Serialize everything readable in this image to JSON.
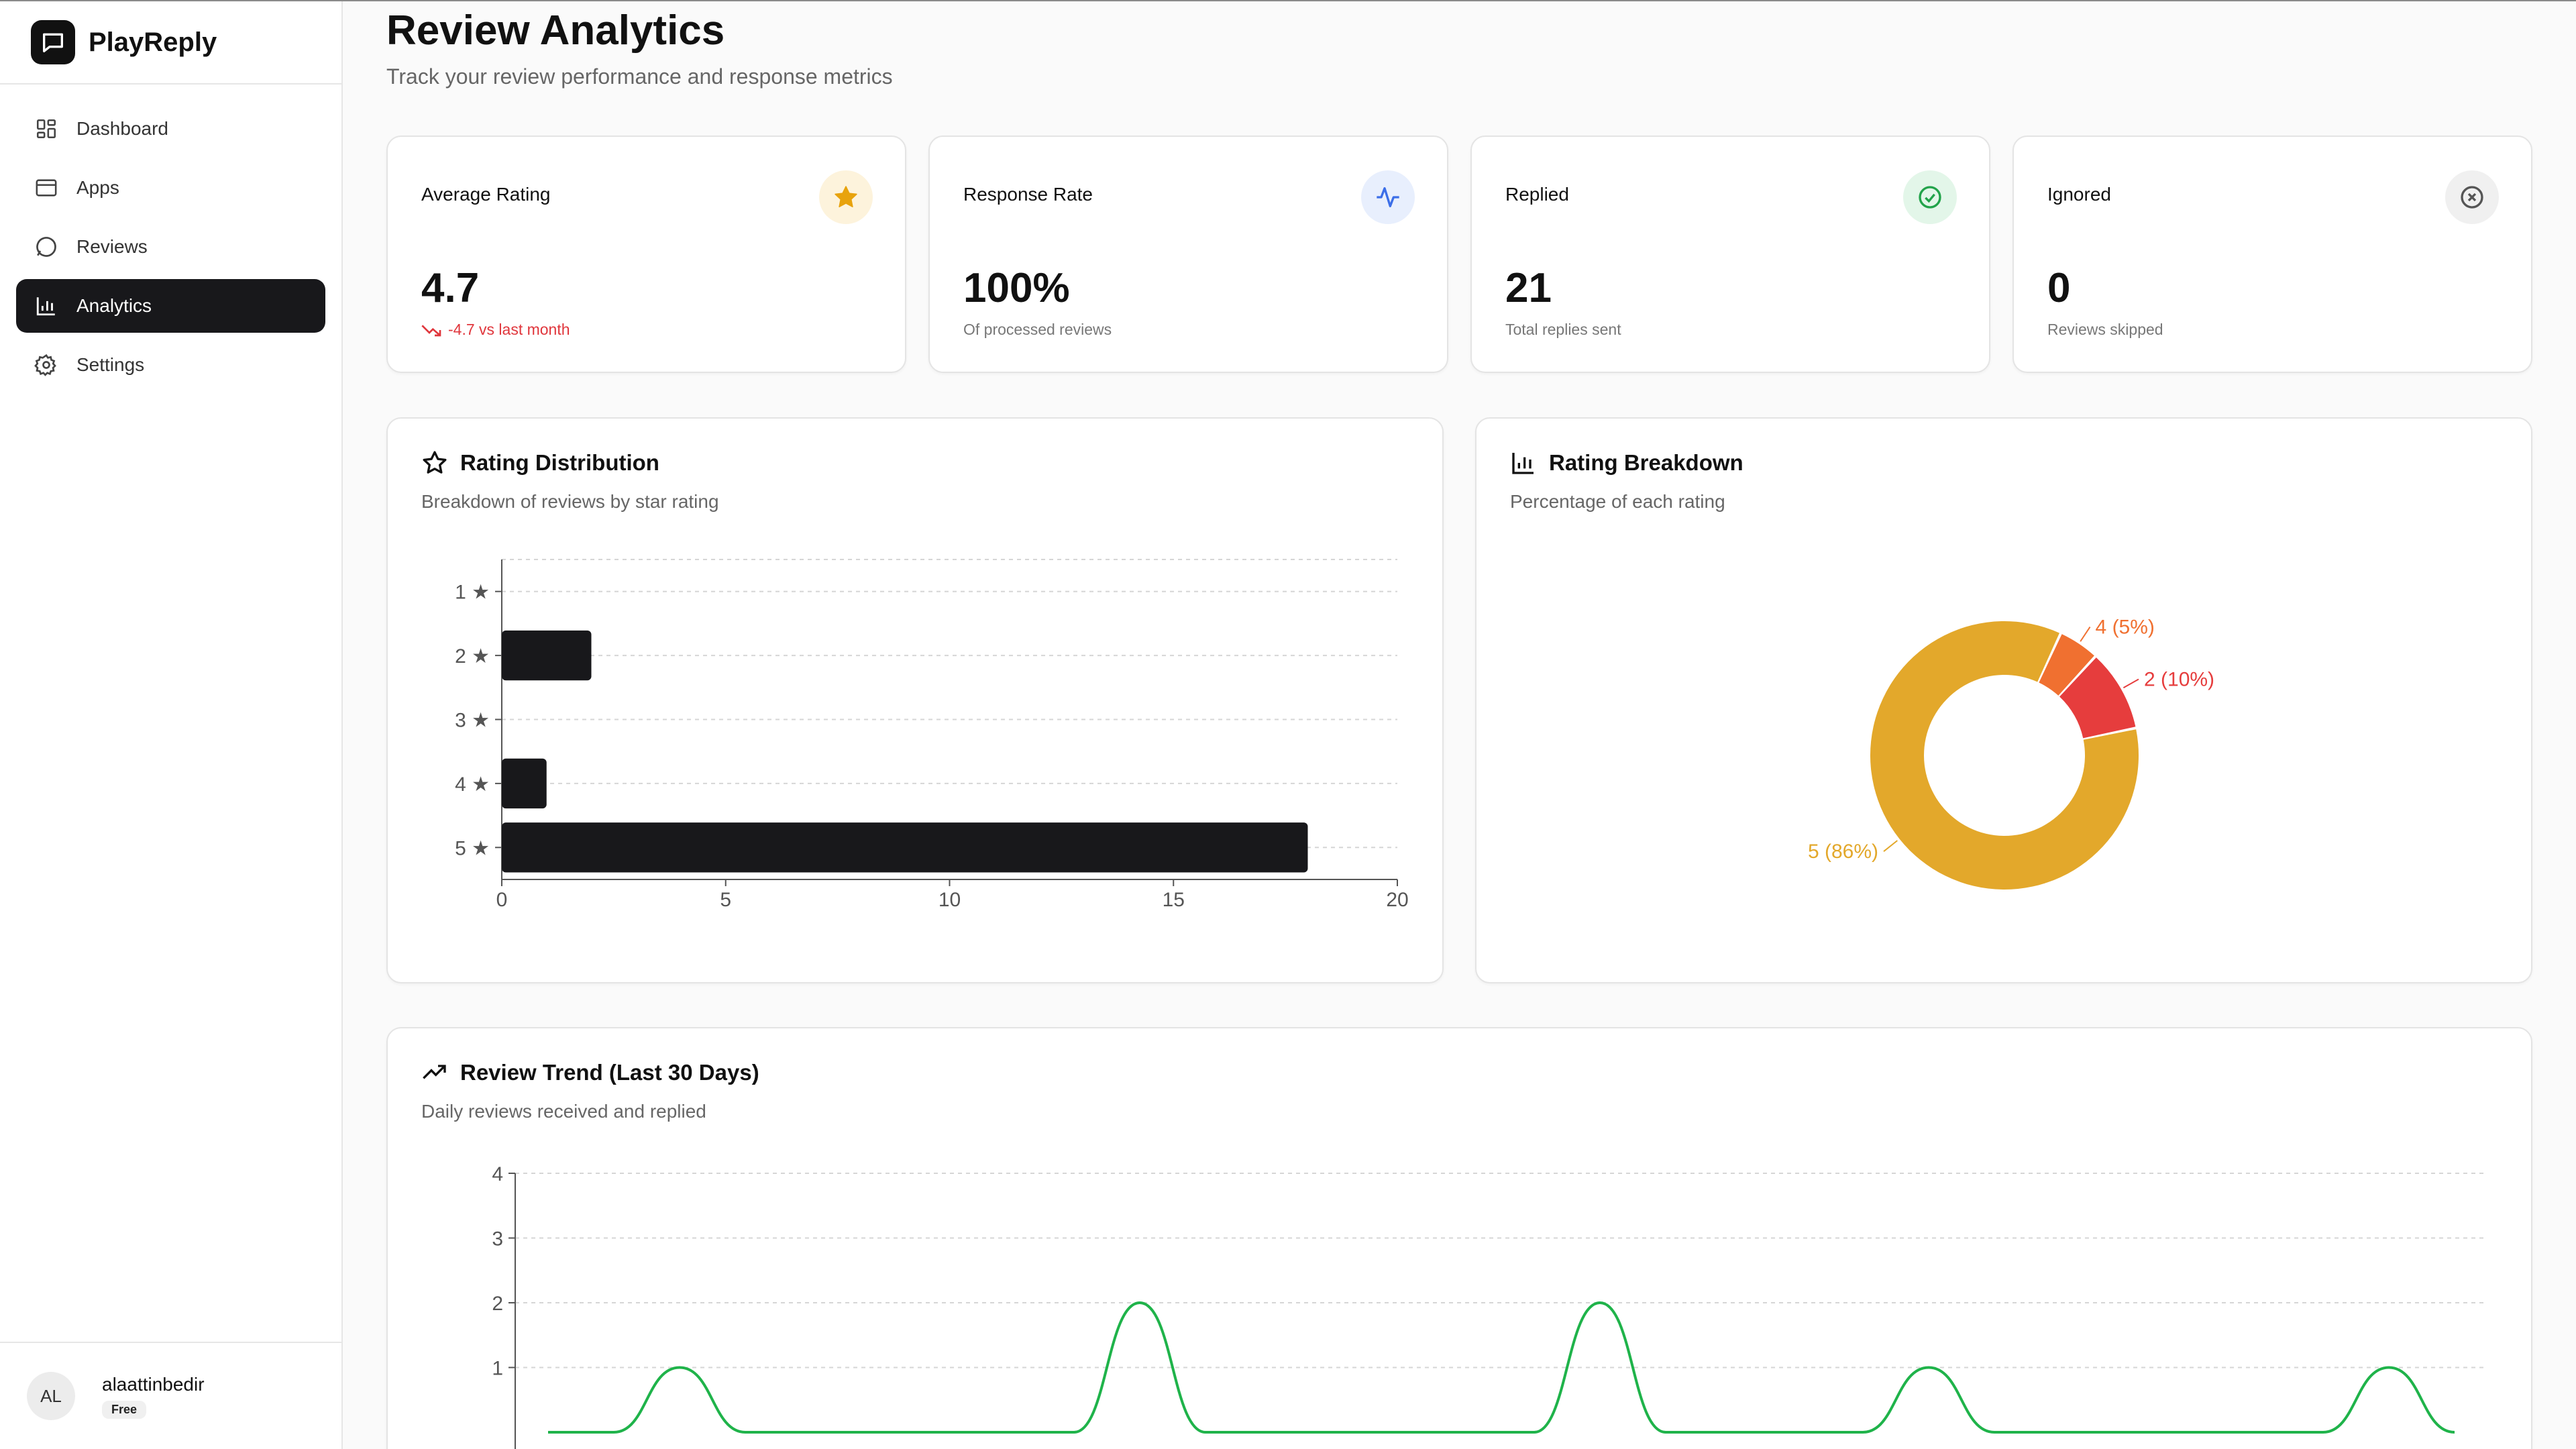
{
  "app": {
    "name": "PlayReply"
  },
  "sidebar": {
    "items": [
      {
        "label": "Dashboard",
        "icon": "dashboard-icon"
      },
      {
        "label": "Apps",
        "icon": "apps-icon"
      },
      {
        "label": "Reviews",
        "icon": "chat-bubble-icon"
      },
      {
        "label": "Analytics",
        "icon": "bar-chart-icon",
        "active": true
      },
      {
        "label": "Settings",
        "icon": "gear-icon"
      }
    ],
    "user": {
      "initials": "AL",
      "name": "alaattinbedir",
      "plan": "Free"
    }
  },
  "page": {
    "title": "Review Analytics",
    "subtitle": "Track your review performance and response metrics"
  },
  "stats": [
    {
      "label": "Average Rating",
      "value": "4.7",
      "note": "-4.7 vs last month",
      "icon": "star-icon",
      "accent": "#e8a30d"
    },
    {
      "label": "Response Rate",
      "value": "100%",
      "note": "Of processed reviews",
      "icon": "activity-icon",
      "accent": "#3b6ee8"
    },
    {
      "label": "Replied",
      "value": "21",
      "note": "Total replies sent",
      "icon": "check-circle-icon",
      "accent": "#22a34a"
    },
    {
      "label": "Ignored",
      "value": "0",
      "note": "Reviews skipped",
      "icon": "x-circle-icon",
      "accent": "#555555"
    }
  ],
  "rating_distribution": {
    "title": "Rating Distribution",
    "subtitle": "Breakdown of reviews by star rating"
  },
  "rating_breakdown": {
    "title": "Rating Breakdown",
    "subtitle": "Percentage of each rating"
  },
  "review_trend": {
    "title": "Review Trend (Last 30 Days)",
    "subtitle": "Daily reviews received and replied"
  },
  "colors": {
    "bar": "#18181b",
    "rating5": "#e3a82b",
    "rating4": "#f07030",
    "rating2": "#e63d3d",
    "trend_line": "#1fb34a",
    "negative": "#e0363c"
  },
  "chart_data": [
    {
      "type": "bar",
      "orientation": "horizontal",
      "categories": [
        "1 ★",
        "2 ★",
        "3 ★",
        "4 ★",
        "5 ★"
      ],
      "values": [
        0,
        2,
        0,
        1,
        18
      ],
      "xticks": [
        "0",
        "5",
        "10",
        "15",
        "20"
      ],
      "xlim": [
        0,
        20
      ],
      "grid": true
    },
    {
      "type": "pie",
      "donut": true,
      "slices": [
        {
          "label": "5 (86%)",
          "value": 86,
          "color": "#e3a82b"
        },
        {
          "label": "4 (5%)",
          "value": 5,
          "color": "#f07030"
        },
        {
          "label": "2 (10%)",
          "value": 10,
          "color": "#e63d3d"
        }
      ]
    },
    {
      "type": "line",
      "yticks": [
        "1",
        "2",
        "3",
        "4"
      ],
      "ylim": [
        0,
        4
      ],
      "grid": true,
      "series": [
        {
          "values": [
            0,
            0,
            1,
            0,
            0,
            0,
            0,
            0,
            0,
            2,
            0,
            0,
            0,
            0,
            0,
            0,
            2,
            0,
            0,
            0,
            0,
            1,
            0,
            0,
            0,
            0,
            0,
            0,
            1,
            0
          ]
        }
      ]
    }
  ]
}
